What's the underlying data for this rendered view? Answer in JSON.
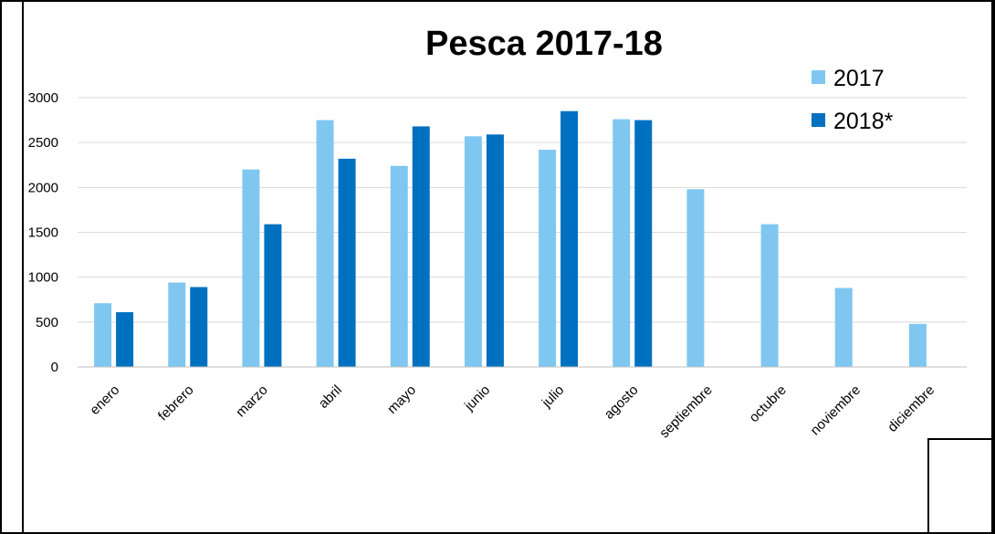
{
  "chart_data": {
    "type": "bar",
    "title": "Pesca 2017-18",
    "xlabel": "",
    "ylabel": "",
    "categories": [
      "enero",
      "febrero",
      "marzo",
      "abril",
      "mayo",
      "junio",
      "julio",
      "agosto",
      "septiembre",
      "octubre",
      "noviembre",
      "diciembre"
    ],
    "series": [
      {
        "name": "2017",
        "color": "#7fc7f1",
        "values": [
          710,
          940,
          2200,
          2750,
          2240,
          2570,
          2420,
          2760,
          1980,
          1590,
          880,
          480
        ]
      },
      {
        "name": "2018*",
        "color": "#0070c0",
        "values": [
          610,
          890,
          1590,
          2320,
          2680,
          2590,
          2850,
          2750,
          null,
          null,
          null,
          null
        ]
      }
    ],
    "ylim": [
      0,
      3000
    ],
    "yticks": [
      0,
      500,
      1000,
      1500,
      2000,
      2500,
      3000
    ],
    "grid": true,
    "legend_position": "top-right"
  }
}
